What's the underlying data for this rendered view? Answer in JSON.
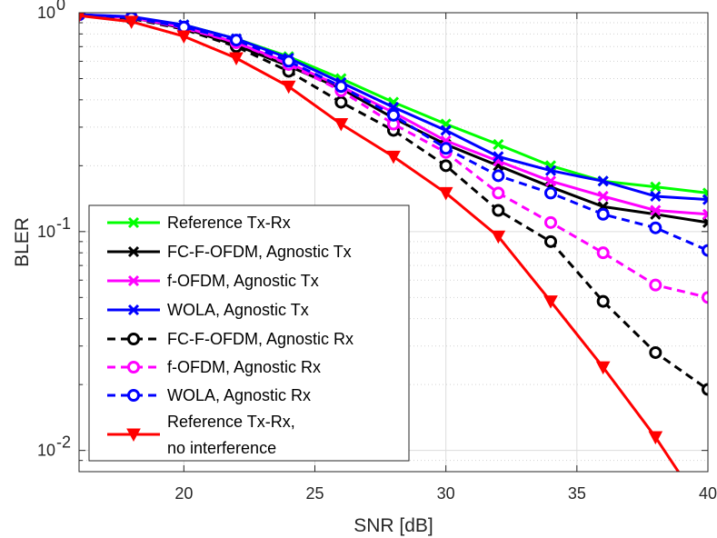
{
  "chart_data": {
    "type": "line",
    "xlabel": "SNR [dB]",
    "ylabel": "BLER",
    "xlim": [
      16,
      40
    ],
    "ylim": [
      0.008,
      1
    ],
    "yscale": "log",
    "grid": true,
    "legend_placement": "bottom-left",
    "x_ticks": [
      "20",
      "25",
      "30",
      "35",
      "40"
    ],
    "y_ticks": [
      {
        "base": "10",
        "exp": "0"
      },
      {
        "base": "10",
        "exp": "-1"
      },
      {
        "base": "10",
        "exp": "-2"
      }
    ],
    "x": [
      16,
      18,
      20,
      22,
      24,
      26,
      28,
      30,
      32,
      34,
      36,
      38,
      40
    ],
    "series": [
      {
        "name": "Reference Tx-Rx",
        "color": "#00ff00",
        "dash": "solid",
        "marker": "x",
        "values": [
          0.98,
          0.95,
          0.88,
          0.76,
          0.63,
          0.5,
          0.39,
          0.31,
          0.25,
          0.2,
          0.17,
          0.16,
          0.15
        ]
      },
      {
        "name": "FC-F-OFDM, Agnostic Tx",
        "color": "#000000",
        "dash": "solid",
        "marker": "x",
        "values": [
          0.98,
          0.95,
          0.85,
          0.71,
          0.57,
          0.45,
          0.33,
          0.25,
          0.2,
          0.16,
          0.13,
          0.12,
          0.11
        ]
      },
      {
        "name": "f-OFDM, Agnostic Tx",
        "color": "#ff00ff",
        "dash": "solid",
        "marker": "x",
        "values": [
          0.98,
          0.95,
          0.86,
          0.73,
          0.59,
          0.46,
          0.35,
          0.26,
          0.21,
          0.17,
          0.145,
          0.125,
          0.12
        ]
      },
      {
        "name": "WOLA, Agnostic Tx",
        "color": "#0000ff",
        "dash": "solid",
        "marker": "x",
        "values": [
          0.98,
          0.96,
          0.88,
          0.76,
          0.62,
          0.48,
          0.37,
          0.29,
          0.22,
          0.19,
          0.17,
          0.145,
          0.14
        ]
      },
      {
        "name": "FC-F-OFDM, Agnostic Rx",
        "color": "#000000",
        "dash": "dashed",
        "marker": "o",
        "values": [
          0.98,
          0.94,
          0.84,
          0.7,
          0.54,
          0.39,
          0.29,
          0.2,
          0.125,
          0.09,
          0.048,
          0.028,
          0.019
        ]
      },
      {
        "name": "f-OFDM, Agnostic Rx",
        "color": "#ff00ff",
        "dash": "dashed",
        "marker": "o",
        "values": [
          0.98,
          0.95,
          0.85,
          0.73,
          0.58,
          0.44,
          0.31,
          0.23,
          0.15,
          0.11,
          0.08,
          0.057,
          0.05
        ]
      },
      {
        "name": "WOLA, Agnostic Rx",
        "color": "#0000ff",
        "dash": "dashed",
        "marker": "o",
        "values": [
          0.98,
          0.95,
          0.86,
          0.75,
          0.6,
          0.46,
          0.34,
          0.24,
          0.18,
          0.15,
          0.12,
          0.104,
          0.082
        ]
      },
      {
        "name": "Reference Tx-Rx,\nno interference",
        "color": "#ff0000",
        "dash": "solid",
        "marker": "v",
        "values": [
          0.97,
          0.91,
          0.78,
          0.62,
          0.46,
          0.31,
          0.22,
          0.15,
          0.095,
          0.048,
          0.024,
          0.0115,
          0.005
        ]
      }
    ]
  }
}
